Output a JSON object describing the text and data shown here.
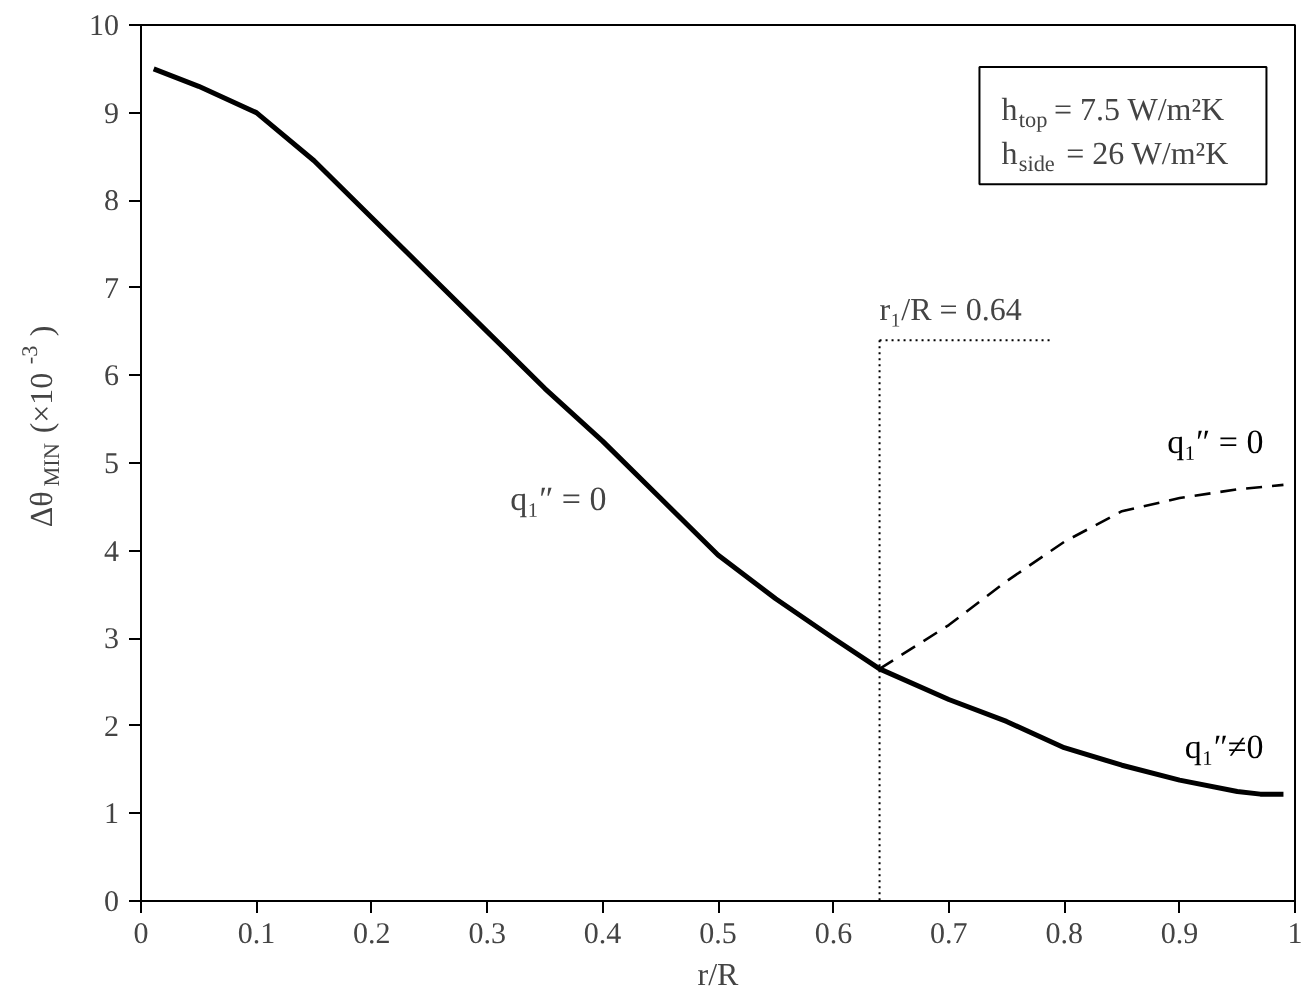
{
  "chart_data": {
    "type": "line",
    "xlabel": "r/R",
    "ylabel": "Δθ$_{MIN}$ (×10$^{-3}$)",
    "xlim": [
      0,
      1
    ],
    "ylim": [
      0,
      10
    ],
    "xticks": [
      0,
      0.1,
      0.2,
      0.3,
      0.4,
      0.5,
      0.6,
      0.7,
      0.8,
      0.9,
      1
    ],
    "yticks": [
      0,
      1,
      2,
      3,
      4,
      5,
      6,
      7,
      8,
      9,
      10
    ],
    "grid": false,
    "legend": false,
    "marker": "none",
    "series": [
      {
        "name": "q₁″≠0",
        "color": "#000000",
        "line_style": "solid",
        "x": [
          0.011,
          0.05,
          0.1,
          0.15,
          0.2,
          0.25,
          0.3,
          0.35,
          0.4,
          0.45,
          0.5,
          0.55,
          0.6,
          0.64,
          0.7,
          0.75,
          0.8,
          0.85,
          0.9,
          0.95,
          0.97,
          0.99
        ],
        "values": [
          9.5,
          9.3,
          9.0,
          8.45,
          7.8,
          7.15,
          6.5,
          5.85,
          5.25,
          4.6,
          3.95,
          3.45,
          3.0,
          2.65,
          2.3,
          2.05,
          1.75,
          1.55,
          1.38,
          1.25,
          1.22,
          1.22
        ]
      },
      {
        "name": "q₁″ = 0",
        "color": "#000000",
        "line_style": "dashed",
        "x": [
          0.64,
          0.7,
          0.75,
          0.8,
          0.85,
          0.9,
          0.95,
          0.99
        ],
        "values": [
          2.65,
          3.15,
          3.65,
          4.1,
          4.45,
          4.6,
          4.7,
          4.75
        ]
      }
    ],
    "ref_lines": [
      {
        "axis": "x",
        "value": 0.64,
        "label": "r₁/R = 0.64",
        "line_style": "dotted",
        "color": "#000000"
      }
    ],
    "annotations": [
      "q₁″ = 0",
      "h$_{top}$ = 7.5 W/m²K",
      "h$_{side}$ = 26 W/m²K"
    ]
  }
}
